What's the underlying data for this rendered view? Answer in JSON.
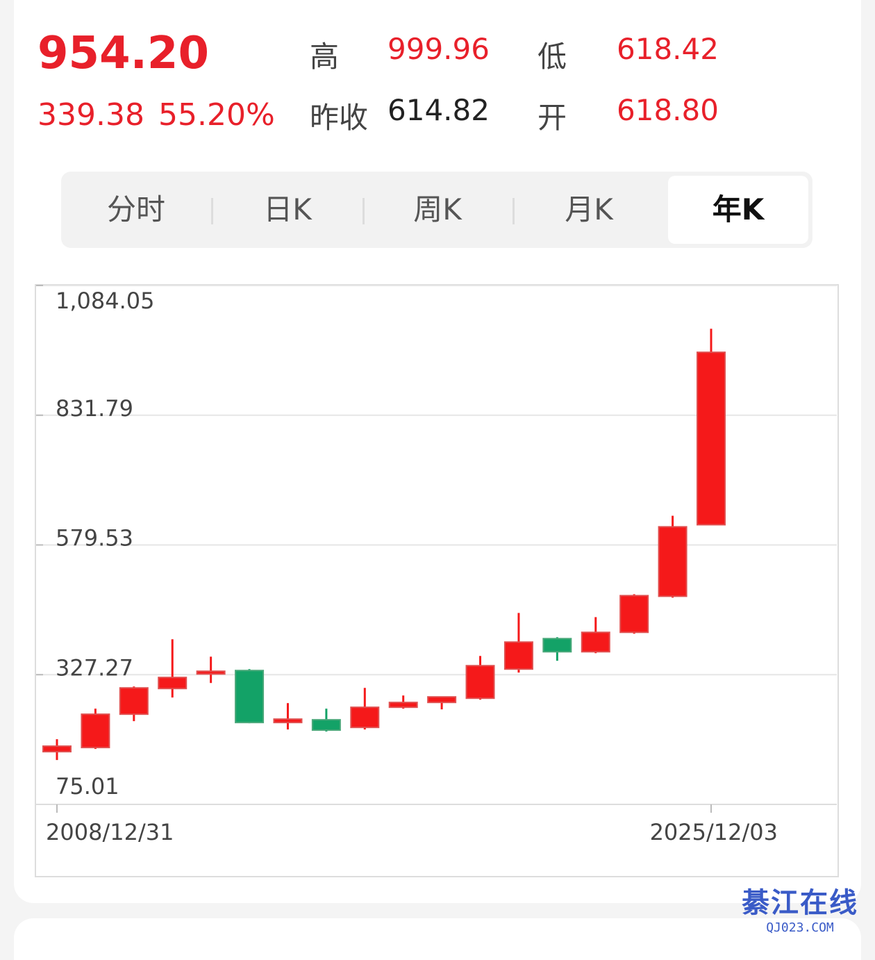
{
  "header": {
    "price": "954.20",
    "change": "339.38",
    "change_pct": "55.20%",
    "high_label": "高",
    "high": "999.96",
    "low_label": "低",
    "low": "618.42",
    "prev_close_label": "昨收",
    "prev_close": "614.82",
    "open_label": "开",
    "open": "618.80"
  },
  "tabs": [
    "分时",
    "日K",
    "周K",
    "月K",
    "年K"
  ],
  "chart_data": {
    "type": "candlestick",
    "categories": [
      "2008/12/31",
      null,
      null,
      null,
      null,
      null,
      null,
      null,
      null,
      null,
      null,
      null,
      null,
      null,
      null,
      null,
      null,
      "2025/12/03"
    ],
    "open": [
      177.5,
      185.6,
      250.4,
      300.3,
      328.6,
      335.4,
      234.2,
      239.6,
      224.7,
      263.9,
      273.3,
      281.4,
      338.1,
      397.4,
      371.8,
      409.6,
      479.7,
      618.8
    ],
    "high": [
      201.8,
      261.2,
      304.3,
      396.1,
      362.3,
      338.1,
      272.0,
      261.2,
      301.6,
      286.8,
      284.1,
      363.7,
      447.3,
      400.1,
      439.2,
      483.7,
      636.2,
      999.96
    ],
    "low": [
      161.3,
      182.9,
      236.9,
      282.8,
      311.1,
      232.9,
      220.7,
      216.7,
      220.7,
      261.2,
      259.8,
      278.7,
      331.3,
      354.3,
      369.1,
      406.9,
      477.0,
      618.42
    ],
    "close": [
      188.3,
      250.4,
      301.6,
      321.9,
      334.0,
      234.2,
      240.9,
      219.4,
      263.9,
      273.3,
      284.1,
      344.8,
      390.7,
      371.8,
      409.6,
      481.0,
      614.82,
      954.2
    ],
    "up_color": "#f5191a",
    "down_color": "#13a267",
    "ylim": [
      75.01,
      1084.05
    ],
    "yticks": [
      75.01,
      327.27,
      579.53,
      831.79,
      {
        "value": 1084.05,
        "label": "1,084.05"
      }
    ],
    "grid": true
  },
  "watermark": {
    "title": "綦江在线",
    "url": "QJ023.COM"
  }
}
